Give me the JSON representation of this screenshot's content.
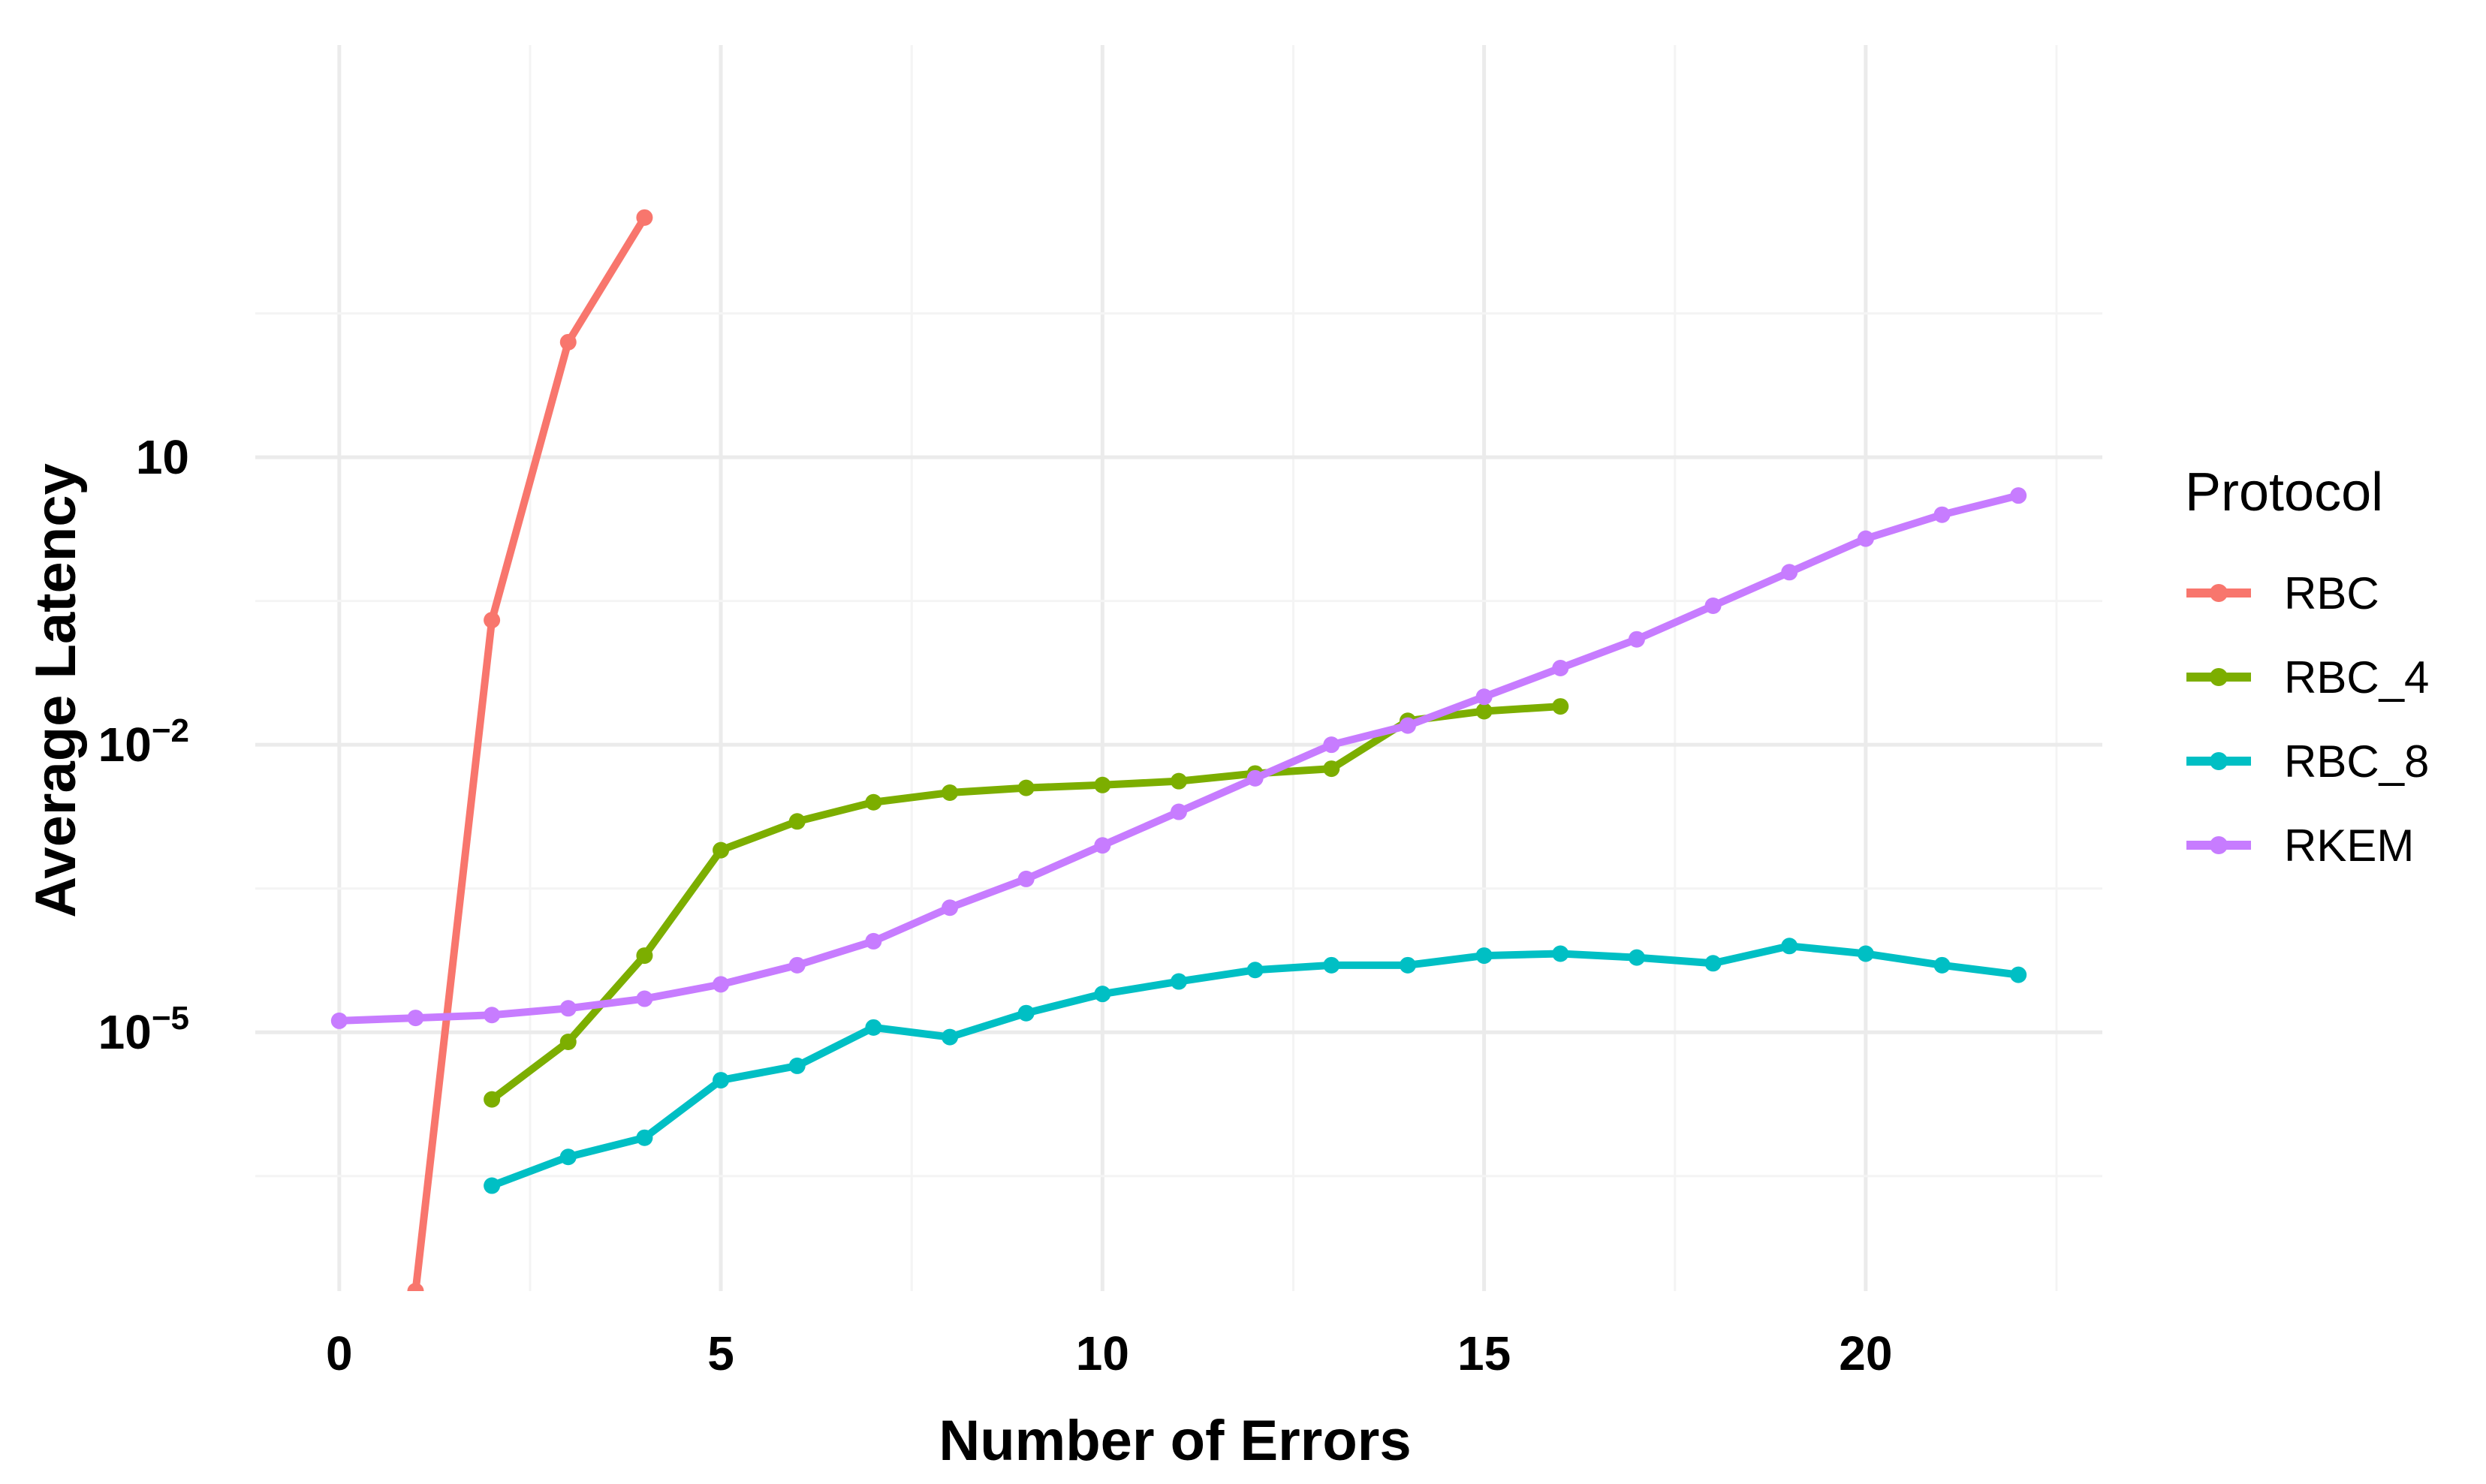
{
  "chart_data": {
    "type": "line",
    "xlabel": "Number of Errors",
    "ylabel": "Average Latency",
    "y_scale": "log10",
    "xlim": [
      -1.1,
      23.1
    ],
    "ylim_log10": [
      -7.7,
      5.3
    ],
    "x_ticks": [
      0,
      5,
      10,
      15,
      20
    ],
    "x_tick_labels": [
      "0",
      "5",
      "10",
      "15",
      "20"
    ],
    "y_ticks_log10": [
      1,
      -2,
      -5
    ],
    "y_tick_labels": [
      {
        "base": "10",
        "exp": ""
      },
      {
        "base": "10",
        "exp": "−2"
      },
      {
        "base": "10",
        "exp": "−5"
      }
    ],
    "grid": true,
    "legend": {
      "title": "Protocol",
      "position": "right"
    },
    "series": [
      {
        "name": "RBC",
        "color": "#F8766D",
        "x": [
          1,
          2,
          3,
          4
        ],
        "log10_y": [
          -7.7,
          -0.7,
          2.2,
          3.5
        ]
      },
      {
        "name": "RBC_4",
        "color": "#7CAE00",
        "x": [
          2,
          3,
          4,
          5,
          6,
          7,
          8,
          9,
          10,
          11,
          12,
          13,
          14,
          15,
          16
        ],
        "log10_y": [
          -5.7,
          -5.1,
          -4.2,
          -3.1,
          -2.8,
          -2.6,
          -2.5,
          -2.45,
          -2.42,
          -2.38,
          -2.3,
          -2.25,
          -1.75,
          -1.65,
          -1.6
        ]
      },
      {
        "name": "RBC_8",
        "color": "#00BFC4",
        "x": [
          2,
          3,
          4,
          5,
          6,
          7,
          8,
          9,
          10,
          11,
          12,
          13,
          14,
          15,
          16,
          17,
          18,
          19,
          20,
          21,
          22
        ],
        "log10_y": [
          -6.6,
          -6.3,
          -6.1,
          -5.5,
          -5.35,
          -4.95,
          -5.05,
          -4.8,
          -4.6,
          -4.47,
          -4.35,
          -4.3,
          -4.3,
          -4.2,
          -4.18,
          -4.22,
          -4.28,
          -4.1,
          -4.18,
          -4.3,
          -4.4
        ]
      },
      {
        "name": "RKEM",
        "color": "#C77CFF",
        "x": [
          0,
          1,
          2,
          3,
          4,
          5,
          6,
          7,
          8,
          9,
          10,
          11,
          12,
          13,
          14,
          15,
          16,
          17,
          18,
          19,
          20,
          21,
          22
        ],
        "log10_y": [
          -4.88,
          -4.85,
          -4.82,
          -4.75,
          -4.65,
          -4.5,
          -4.3,
          -4.05,
          -3.7,
          -3.4,
          -3.05,
          -2.7,
          -2.35,
          -2.0,
          -1.8,
          -1.5,
          -1.2,
          -0.9,
          -0.55,
          -0.2,
          0.15,
          0.4,
          0.6
        ]
      }
    ]
  }
}
